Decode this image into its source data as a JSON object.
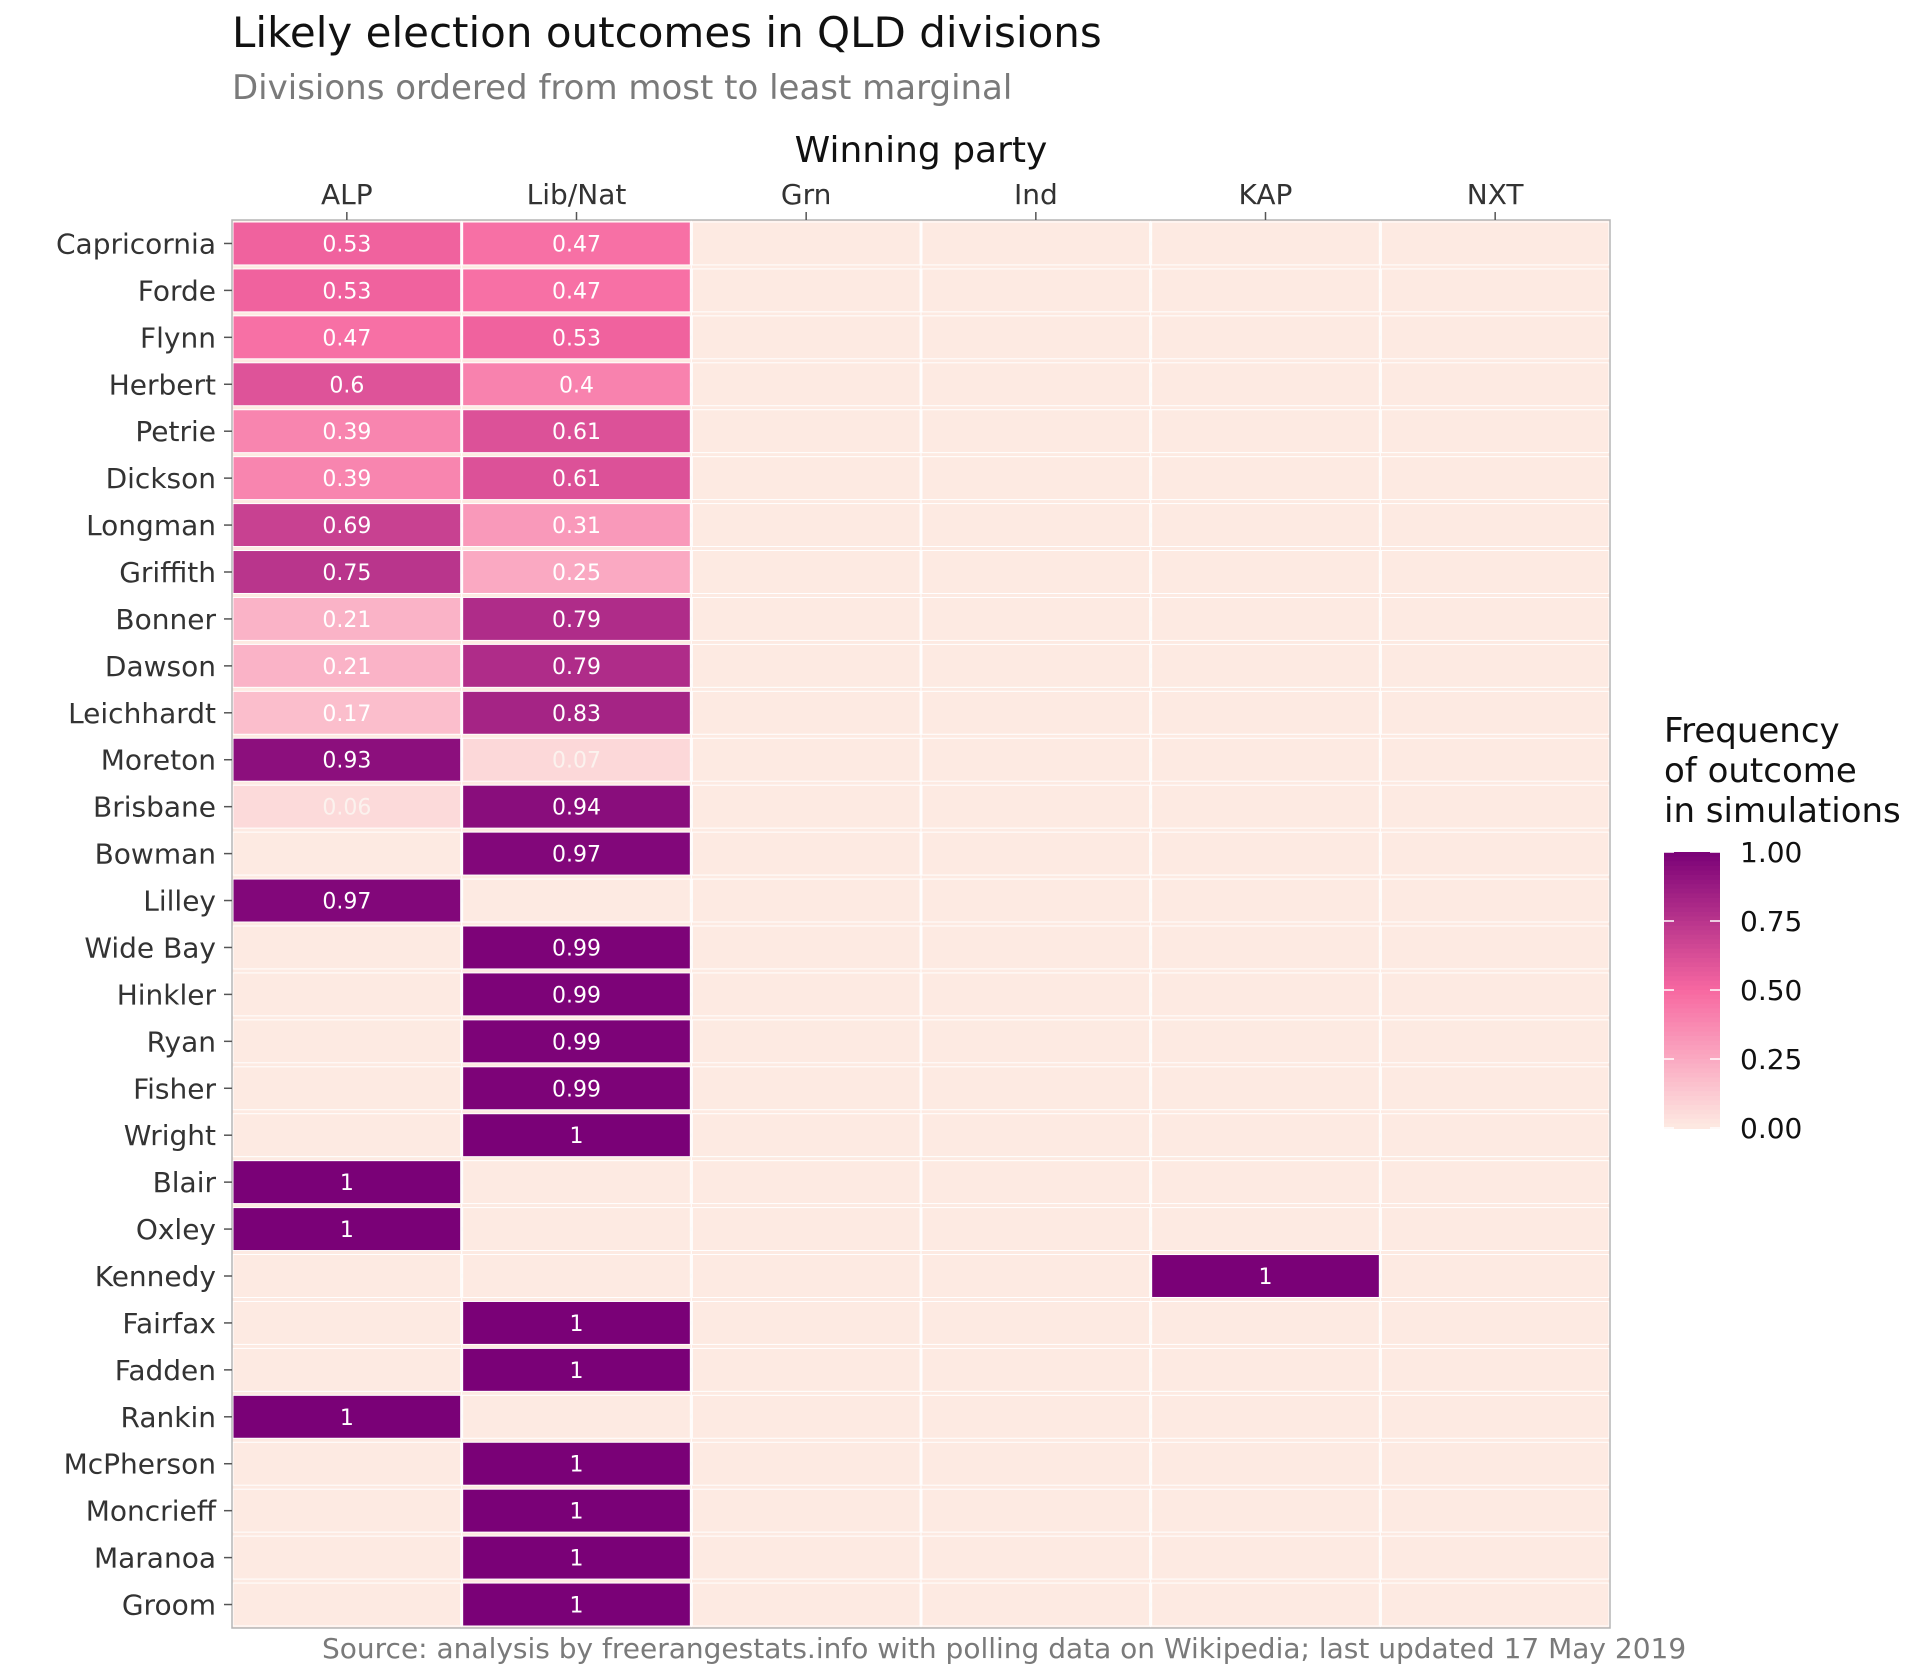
{
  "chart_data": {
    "type": "heatmap",
    "title": "Likely election outcomes in QLD divisions",
    "subtitle": "Divisions ordered from most to least marginal",
    "x_axis_title": "Winning party",
    "x_axis_position": "top",
    "columns": [
      "ALP",
      "Lib/Nat",
      "Grn",
      "Ind",
      "KAP",
      "NXT"
    ],
    "rows": [
      "Capricornia",
      "Forde",
      "Flynn",
      "Herbert",
      "Petrie",
      "Dickson",
      "Longman",
      "Griffith",
      "Bonner",
      "Dawson",
      "Leichhardt",
      "Moreton",
      "Brisbane",
      "Bowman",
      "Lilley",
      "Wide Bay",
      "Hinkler",
      "Ryan",
      "Fisher",
      "Wright",
      "Blair",
      "Oxley",
      "Kennedy",
      "Fairfax",
      "Fadden",
      "Rankin",
      "McPherson",
      "Moncrieff",
      "Maranoa",
      "Groom"
    ],
    "values": [
      [
        0.53,
        0.47,
        null,
        null,
        null,
        null
      ],
      [
        0.53,
        0.47,
        null,
        null,
        null,
        null
      ],
      [
        0.47,
        0.53,
        null,
        null,
        null,
        null
      ],
      [
        0.6,
        0.4,
        null,
        null,
        null,
        null
      ],
      [
        0.39,
        0.61,
        null,
        null,
        null,
        null
      ],
      [
        0.39,
        0.61,
        null,
        null,
        null,
        null
      ],
      [
        0.69,
        0.31,
        null,
        null,
        null,
        null
      ],
      [
        0.75,
        0.25,
        null,
        null,
        null,
        null
      ],
      [
        0.21,
        0.79,
        null,
        null,
        null,
        null
      ],
      [
        0.21,
        0.79,
        null,
        null,
        null,
        null
      ],
      [
        0.17,
        0.83,
        null,
        null,
        null,
        null
      ],
      [
        0.93,
        0.07,
        null,
        null,
        null,
        null
      ],
      [
        0.06,
        0.94,
        null,
        null,
        null,
        null
      ],
      [
        null,
        0.97,
        null,
        null,
        null,
        null
      ],
      [
        0.97,
        null,
        null,
        null,
        null,
        null
      ],
      [
        null,
        0.99,
        null,
        null,
        null,
        null
      ],
      [
        null,
        0.99,
        null,
        null,
        null,
        null
      ],
      [
        null,
        0.99,
        null,
        null,
        null,
        null
      ],
      [
        null,
        0.99,
        null,
        null,
        null,
        null
      ],
      [
        null,
        1,
        null,
        null,
        null,
        null
      ],
      [
        1,
        null,
        null,
        null,
        null,
        null
      ],
      [
        1,
        null,
        null,
        null,
        null,
        null
      ],
      [
        null,
        null,
        null,
        null,
        1,
        null
      ],
      [
        null,
        1,
        null,
        null,
        null,
        null
      ],
      [
        null,
        1,
        null,
        null,
        null,
        null
      ],
      [
        1,
        null,
        null,
        null,
        null,
        null
      ],
      [
        null,
        1,
        null,
        null,
        null,
        null
      ],
      [
        null,
        1,
        null,
        null,
        null,
        null
      ],
      [
        null,
        1,
        null,
        null,
        null,
        null
      ],
      [
        null,
        1,
        null,
        null,
        null,
        null
      ]
    ],
    "legend": {
      "title": [
        "Frequency",
        "of outcome",
        "in simulations"
      ],
      "position": "right",
      "breaks": [
        1.0,
        0.75,
        0.5,
        0.25,
        0.0
      ],
      "labels": [
        "1.00",
        "0.75",
        "0.50",
        "0.25",
        "0.00"
      ],
      "range": [
        0,
        1
      ],
      "low_color": "#fdeae2",
      "mid_color": "#f768a1",
      "high_color": "#7a0177"
    },
    "grid": true,
    "background_color": "#fdeae2"
  },
  "caption": "Source: analysis by freerangestats.info with polling data on Wikipedia; last updated 17 May 2019"
}
